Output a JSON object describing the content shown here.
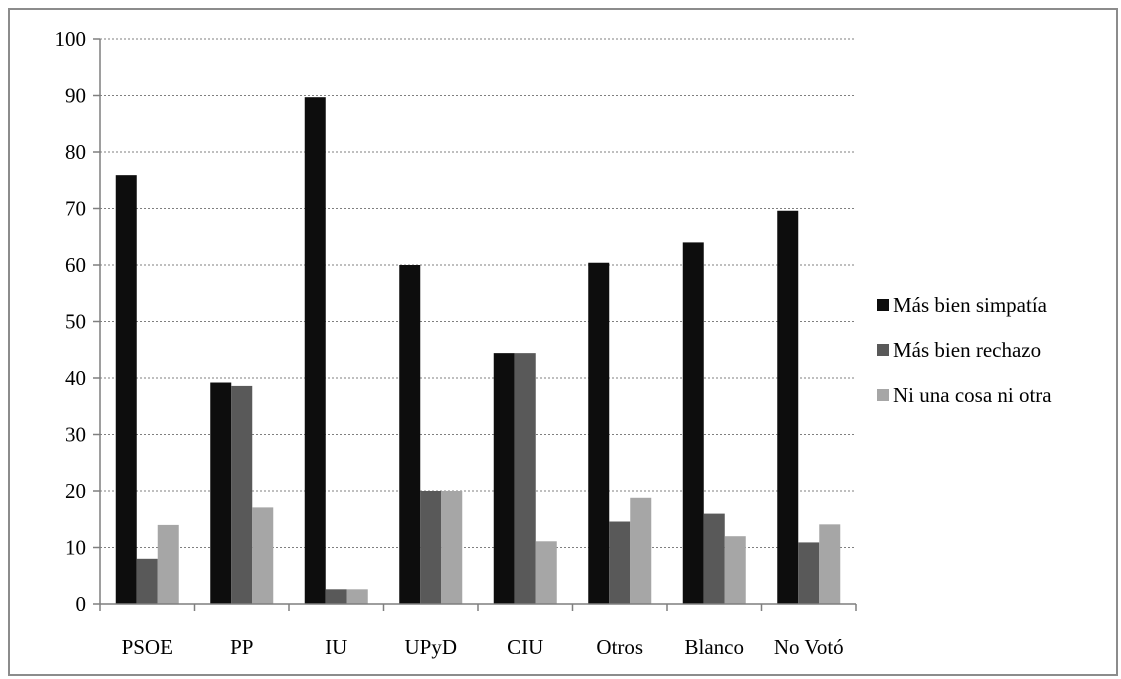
{
  "chart_data": {
    "type": "bar",
    "title": "",
    "xlabel": "",
    "ylabel": "",
    "categories": [
      "PSOE",
      "PP",
      "IU",
      "UPyD",
      "CIU",
      "Otros",
      "Blanco",
      "No Votó"
    ],
    "series": [
      {
        "name": "Más bien simpatía",
        "color": "#0d0d0d",
        "values": [
          75.9,
          39.2,
          89.7,
          60.0,
          44.4,
          60.4,
          64.0,
          69.6
        ]
      },
      {
        "name": "Más bien rechazo",
        "color": "#595959",
        "values": [
          8.0,
          38.6,
          2.6,
          20.0,
          44.4,
          14.6,
          16.0,
          10.9
        ]
      },
      {
        "name": "Ni una cosa ni otra",
        "color": "#a6a6a6",
        "values": [
          14.0,
          17.1,
          2.6,
          20.0,
          11.1,
          18.8,
          12.0,
          14.1
        ]
      }
    ],
    "ylim": [
      0,
      100
    ],
    "yticks": [
      0,
      10,
      20,
      30,
      40,
      50,
      60,
      70,
      80,
      90,
      100
    ],
    "grid": true,
    "legend_position": "right"
  }
}
